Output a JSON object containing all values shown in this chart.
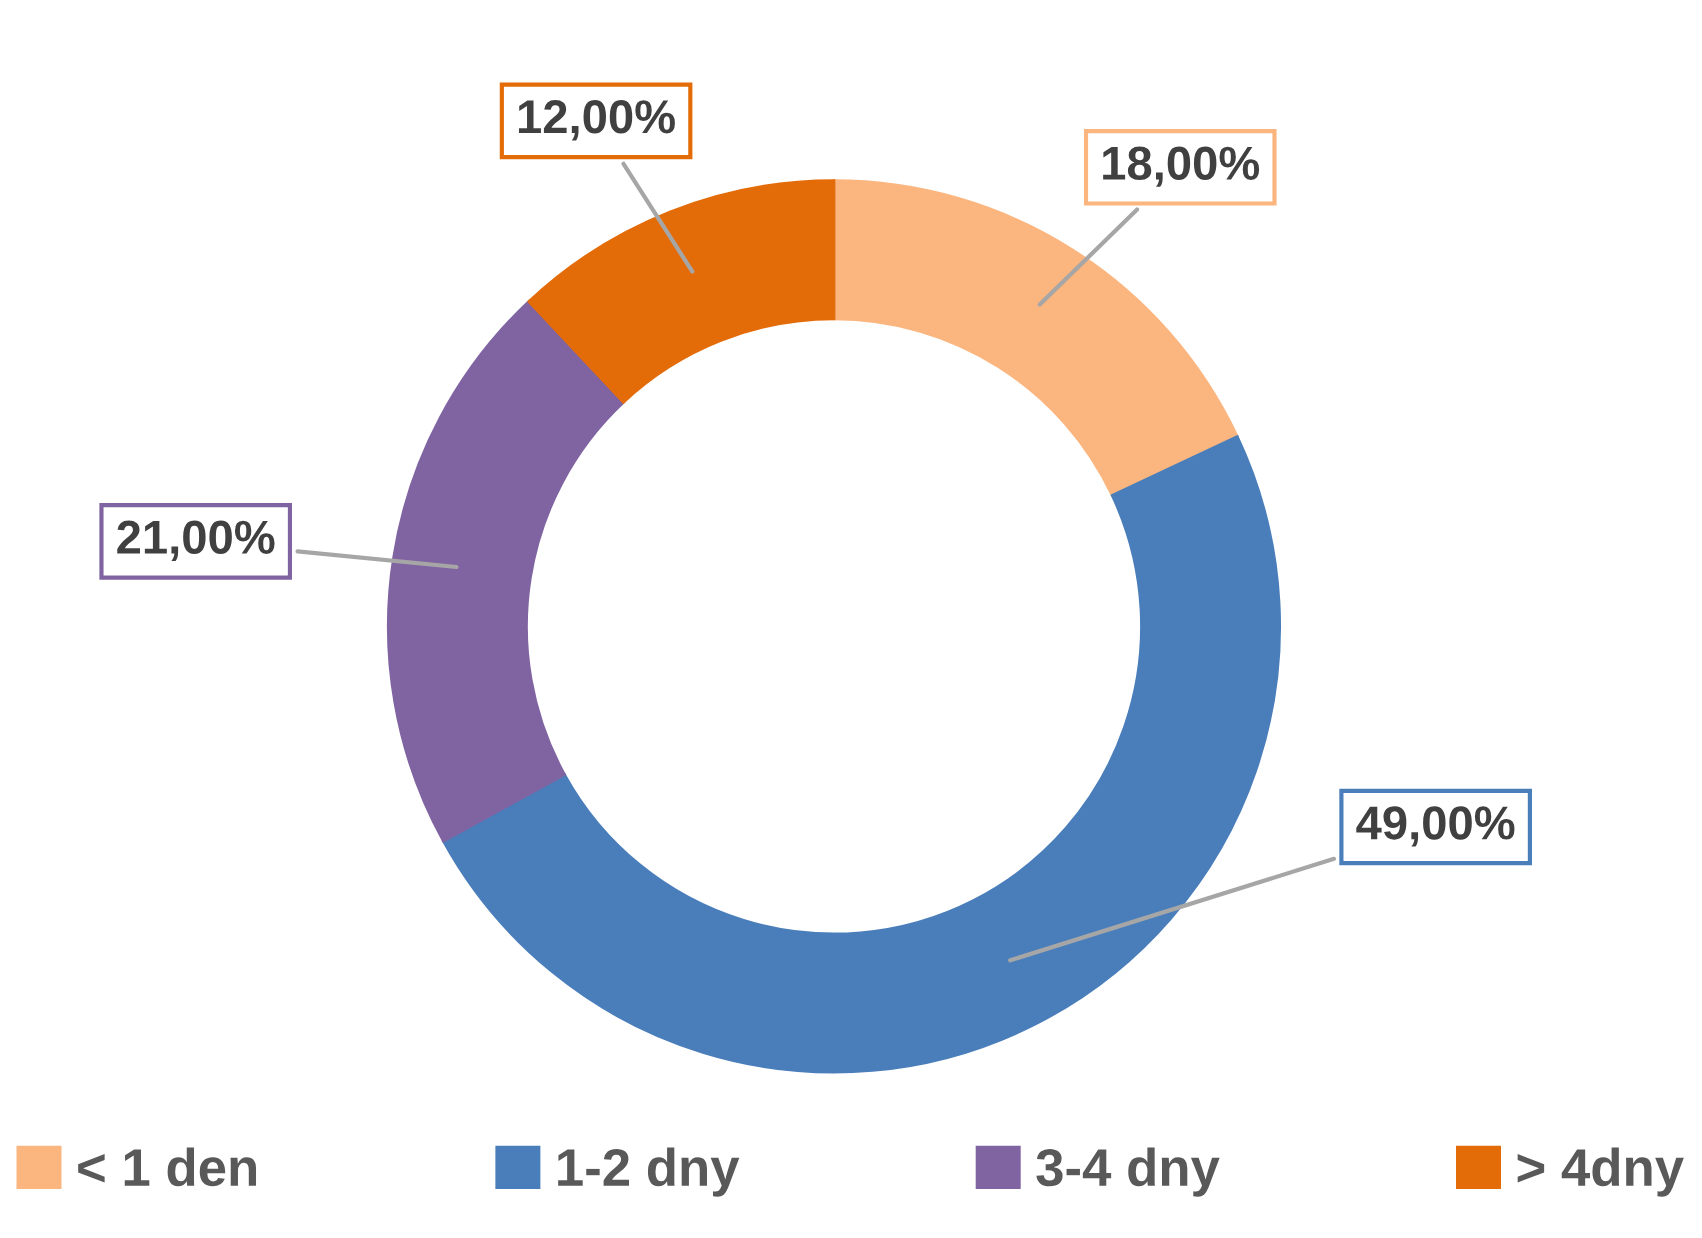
{
  "chart_data": {
    "type": "donut",
    "categories": [
      "< 1 den",
      "1-2 dny",
      "3-4 dny",
      "> 4dny"
    ],
    "values": [
      18,
      49,
      21,
      12
    ],
    "value_labels": [
      "18,00%",
      "49,00%",
      "21,00%",
      "12,00%"
    ],
    "colors": [
      "#fbb57f",
      "#4a7ebb",
      "#8064a2",
      "#e36c09"
    ],
    "legend": "bottom"
  }
}
